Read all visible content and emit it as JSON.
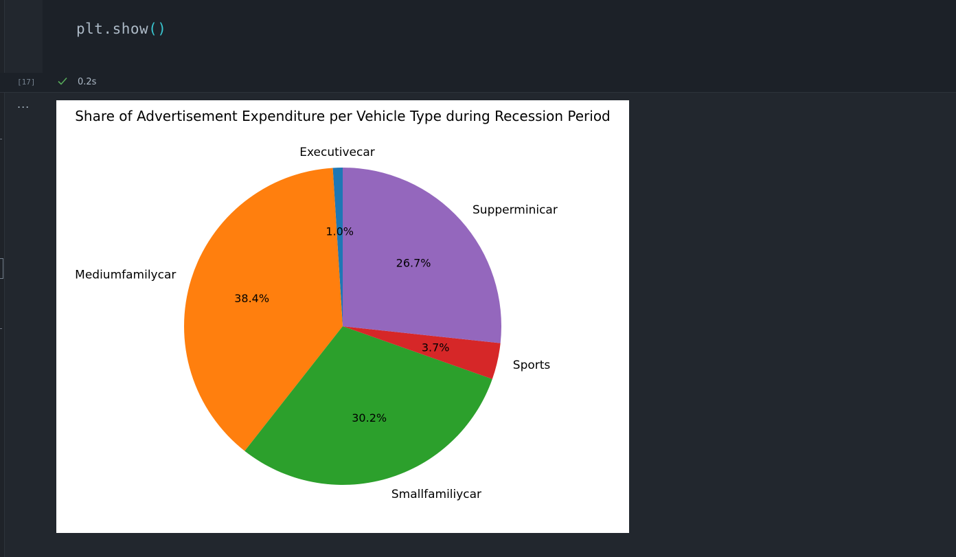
{
  "cell": {
    "code_func": "plt.show",
    "code_paren": "()",
    "execution_count": "[17]",
    "execution_time": "0.2s",
    "output_menu": "...",
    "status_icon": "check-icon",
    "status_color": "#57ab5a"
  },
  "chart_data": {
    "type": "pie",
    "title": "Share of Advertisement Expenditure per Vehicle Type during Recession Period",
    "start_angle": 90,
    "slices": [
      {
        "label": "Executivecar",
        "value": 1.0,
        "pct_label": "1.0%",
        "color": "#1f77b4"
      },
      {
        "label": "Mediumfamilycar",
        "value": 38.4,
        "pct_label": "38.4%",
        "color": "#ff7f0e"
      },
      {
        "label": "Smallfamiliycar",
        "value": 30.2,
        "pct_label": "30.2%",
        "color": "#2ca02c"
      },
      {
        "label": "Sports",
        "value": 3.7,
        "pct_label": "3.7%",
        "color": "#d62728"
      },
      {
        "label": "Supperminicar",
        "value": 26.7,
        "pct_label": "26.7%",
        "color": "#9467bd"
      }
    ]
  }
}
